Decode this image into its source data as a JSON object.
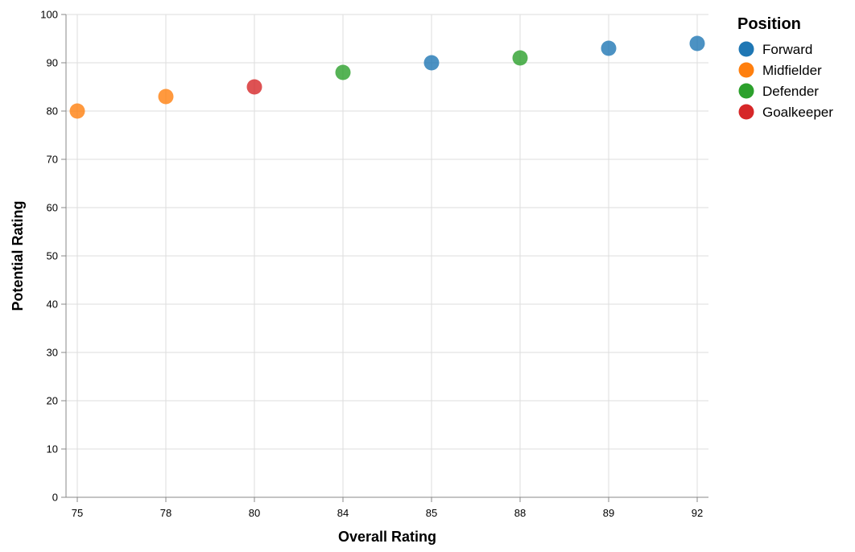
{
  "chart_data": {
    "type": "scatter",
    "title": "",
    "xlabel": "Overall Rating",
    "ylabel": "Potential Rating",
    "x_categories": [
      "75",
      "78",
      "80",
      "84",
      "85",
      "88",
      "89",
      "92"
    ],
    "ylim": [
      0,
      100
    ],
    "y_ticks": [
      "0",
      "10",
      "20",
      "30",
      "40",
      "50",
      "60",
      "70",
      "80",
      "90",
      "100"
    ],
    "grid": true,
    "legend": {
      "title": "Position",
      "placement": "right",
      "entries": [
        {
          "name": "Forward",
          "color": "#1f77b4"
        },
        {
          "name": "Midfielder",
          "color": "#ff7f0e"
        },
        {
          "name": "Defender",
          "color": "#2ca02c"
        },
        {
          "name": "Goalkeeper",
          "color": "#d62728"
        }
      ]
    },
    "points": [
      {
        "x": "75",
        "y": 80,
        "position": "Midfielder"
      },
      {
        "x": "78",
        "y": 83,
        "position": "Midfielder"
      },
      {
        "x": "80",
        "y": 85,
        "position": "Goalkeeper"
      },
      {
        "x": "84",
        "y": 88,
        "position": "Defender"
      },
      {
        "x": "85",
        "y": 90,
        "position": "Forward"
      },
      {
        "x": "88",
        "y": 91,
        "position": "Defender"
      },
      {
        "x": "89",
        "y": 93,
        "position": "Forward"
      },
      {
        "x": "92",
        "y": 94,
        "position": "Forward"
      }
    ]
  }
}
